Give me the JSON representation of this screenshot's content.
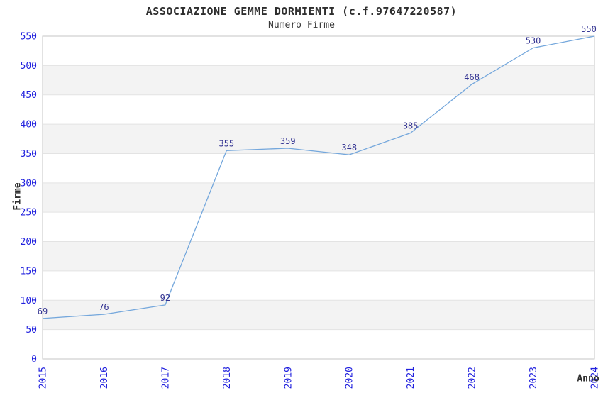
{
  "header": {
    "title": "ASSOCIAZIONE GEMME DORMIENTI (c.f.97647220587)",
    "subtitle": "Numero Firme"
  },
  "chart_data": {
    "type": "line",
    "title": "ASSOCIAZIONE GEMME DORMIENTI (c.f.97647220587)",
    "subtitle": "Numero Firme",
    "xlabel": "Anno",
    "ylabel": "Firme",
    "categories": [
      "2015",
      "2016",
      "2017",
      "2018",
      "2019",
      "2020",
      "2021",
      "2022",
      "2023",
      "2024"
    ],
    "values": [
      69,
      76,
      92,
      355,
      359,
      348,
      385,
      468,
      530,
      550
    ],
    "ylim": [
      0,
      550
    ],
    "ytick_step": 50,
    "ytick_labels": [
      "0",
      "50",
      "100",
      "150",
      "200",
      "250",
      "300",
      "350",
      "400",
      "450",
      "500",
      "550"
    ],
    "grid": "on",
    "legend_position": "none",
    "band_style": "alternating-horizontal",
    "colors": {
      "line": "#74a7dc",
      "tick_label": "#2121de",
      "point_label": "#333392",
      "band_gray": "#f3f3f3",
      "grid_line": "#e3e3e3",
      "plot_border": "#c5c5c5",
      "text": "#2e2e2e",
      "background": "#ffffff"
    }
  }
}
